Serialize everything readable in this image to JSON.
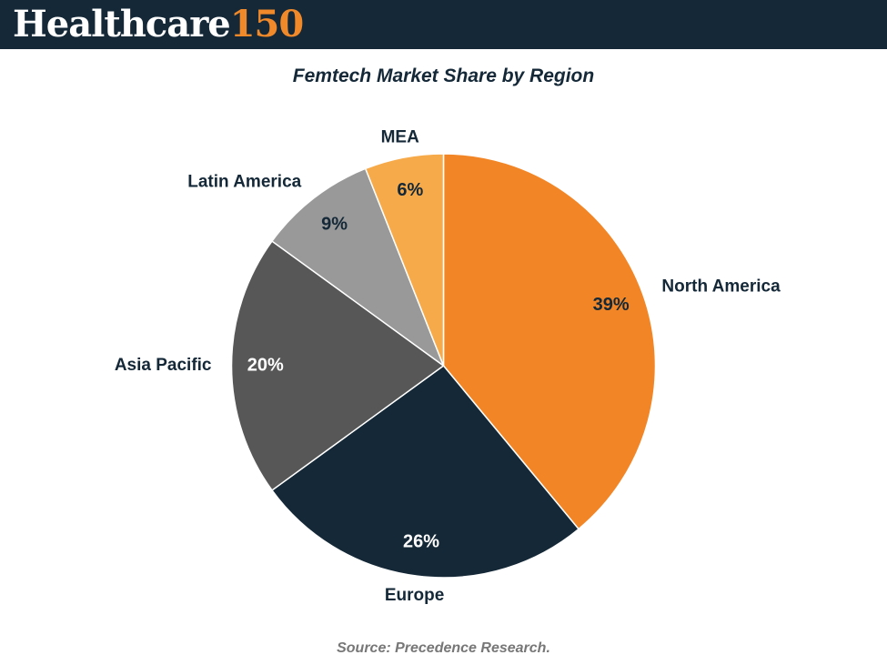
{
  "header": {
    "logo_word": "Healthcare",
    "logo_number": "150",
    "background": "#142838",
    "accent": "#f0892a"
  },
  "source": "Source: Precedence Research.",
  "chart_data": {
    "type": "pie",
    "title": "Femtech Market Share by Region",
    "start_angle_deg": 0,
    "direction": "clockwise",
    "slices": [
      {
        "label": "North America",
        "value": 39,
        "value_label": "39%",
        "color": "#f28627",
        "value_text_color": "#142838"
      },
      {
        "label": "Europe",
        "value": 26,
        "value_label": "26%",
        "color": "#142837",
        "value_text_color": "#ffffff"
      },
      {
        "label": "Asia Pacific",
        "value": 20,
        "value_label": "20%",
        "color": "#575757",
        "value_text_color": "#ffffff"
      },
      {
        "label": "Latin America",
        "value": 9,
        "value_label": "9%",
        "color": "#999999",
        "value_text_color": "#142838"
      },
      {
        "label": "MEA",
        "value": 6,
        "value_label": "6%",
        "color": "#f7aa4a",
        "value_text_color": "#142838"
      }
    ]
  }
}
